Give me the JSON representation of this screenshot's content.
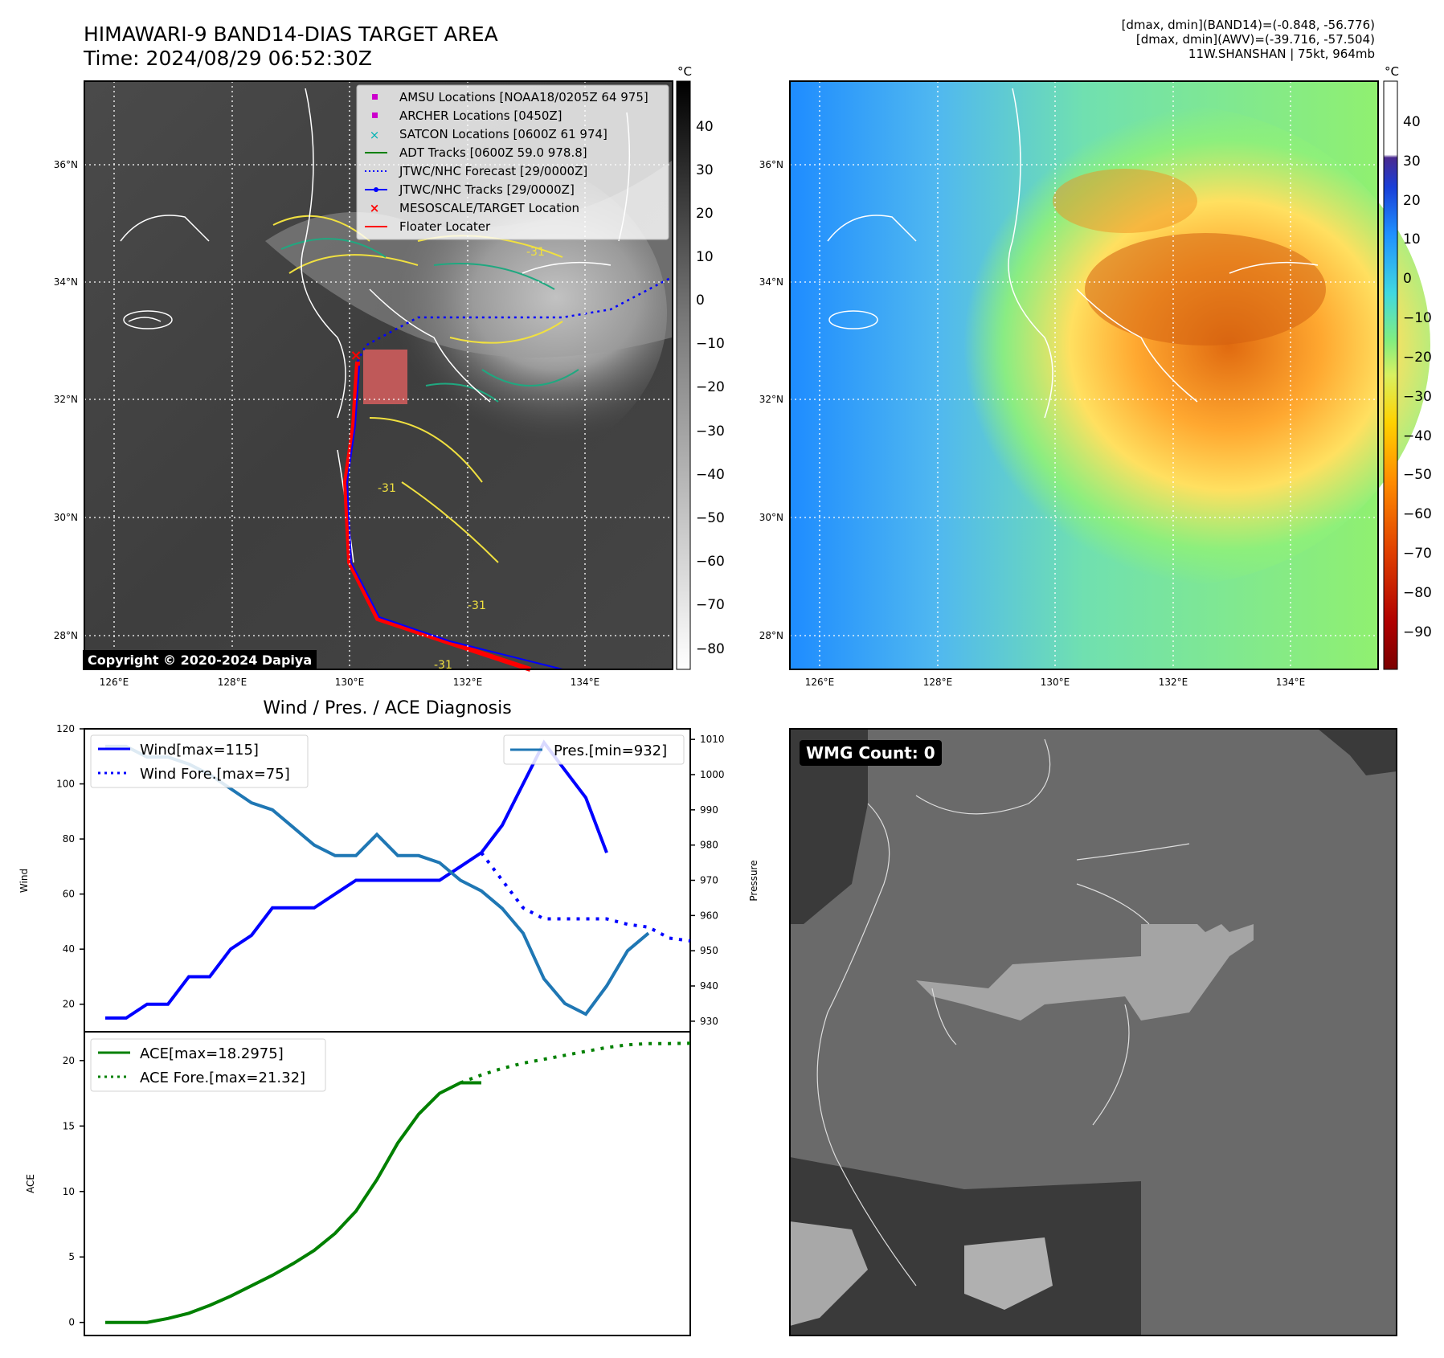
{
  "header": {
    "title_line1": "HIMAWARI-9 BAND14-DIAS TARGET AREA",
    "title_line2": "Time: 2024/08/29 06:52:30Z",
    "info_line1": "[dmax, dmin](BAND14)=(-0.848, -56.776)",
    "info_line2": "[dmax, dmin](AWV)=(-39.716, -57.504)",
    "info_line3": "11W.SHANSHAN | 75kt, 964mb"
  },
  "maps": {
    "lat_labels": [
      "36°N",
      "34°N",
      "32°N",
      "30°N",
      "28°N"
    ],
    "lon_labels": [
      "126°E",
      "128°E",
      "130°E",
      "132°E",
      "134°E"
    ],
    "copyright": "Copyright © 2020-2024 Dapiya",
    "colorbar_unit": "°C",
    "left_colorbar_ticks": [
      "40",
      "30",
      "20",
      "10",
      "0",
      "−10",
      "−20",
      "−30",
      "−40",
      "−50",
      "−60",
      "−70",
      "−80"
    ],
    "right_colorbar_ticks": [
      "40",
      "30",
      "20",
      "10",
      "0",
      "−10",
      "−20",
      "−30",
      "−40",
      "−50",
      "−60",
      "−70",
      "−80",
      "−90"
    ],
    "legend": [
      {
        "label": "AMSU Locations [NOAA18/0205Z 64 975]",
        "color": "#cc00cc",
        "marker": "square"
      },
      {
        "label": "ARCHER Locations [0450Z]",
        "color": "#cc00cc",
        "marker": "square"
      },
      {
        "label": "SATCON Locations [0600Z 61 974]",
        "color": "#00b3b3",
        "marker": "x"
      },
      {
        "label": "ADT Tracks [0600Z 59.0 978.8]",
        "color": "#008000",
        "marker": "line"
      },
      {
        "label": "JTWC/NHC Forecast [29/0000Z]",
        "color": "#0000ff",
        "marker": "dotted"
      },
      {
        "label": "JTWC/NHC Tracks [29/0000Z]",
        "color": "#0000ff",
        "marker": "line-dot"
      },
      {
        "label": "MESOSCALE/TARGET Location",
        "color": "#ff0000",
        "marker": "x"
      },
      {
        "label": "Floater Locater",
        "color": "#ff0000",
        "marker": "line"
      }
    ],
    "contour_labels": [
      "-31",
      "-31",
      "-31",
      "-31"
    ],
    "wmg_count": "WMG Count: 0"
  },
  "diagnosis_title": "Wind / Pres. / ACE Diagnosis",
  "chart_data": [
    {
      "type": "line",
      "title": "Wind / Pres. / ACE Diagnosis",
      "ylabel": "Wind",
      "y2label": "Pressure",
      "ylim": [
        10,
        120
      ],
      "y2lim": [
        927,
        1013
      ],
      "xlim": [
        0,
        29
      ],
      "yticks": [
        20,
        40,
        60,
        80,
        100,
        120
      ],
      "y2ticks": [
        930,
        940,
        950,
        960,
        970,
        980,
        990,
        1000,
        1010
      ],
      "series": [
        {
          "name": "Wind[max=115]",
          "axis": "left",
          "color": "#0000ff",
          "style": "solid",
          "x": [
            1,
            2,
            3,
            4,
            5,
            6,
            7,
            8,
            9,
            10,
            11,
            12,
            13,
            14,
            15,
            16,
            17,
            18,
            19,
            20,
            21,
            22,
            23,
            24,
            25
          ],
          "values": [
            15,
            15,
            20,
            20,
            30,
            30,
            40,
            45,
            55,
            55,
            55,
            60,
            65,
            65,
            65,
            65,
            65,
            70,
            75,
            85,
            100,
            115,
            105,
            95,
            75
          ]
        },
        {
          "name": "Wind Fore.[max=75]",
          "axis": "left",
          "color": "#0000ff",
          "style": "dotted",
          "x": [
            19,
            20,
            21,
            22,
            23,
            24,
            25,
            26,
            27,
            28,
            29
          ],
          "values": [
            75,
            65,
            55,
            51,
            51,
            51,
            51,
            49,
            48,
            44,
            43
          ]
        },
        {
          "name": "Pres.[min=932]",
          "axis": "right",
          "color": "#1f77b4",
          "style": "solid",
          "x": [
            1,
            2,
            3,
            4,
            5,
            6,
            7,
            8,
            9,
            10,
            11,
            12,
            13,
            14,
            15,
            16,
            17,
            18,
            19,
            20,
            21,
            22,
            23,
            24,
            25,
            26,
            27
          ],
          "values": [
            1008,
            1008,
            1005,
            1005,
            1003,
            1000,
            996,
            992,
            990,
            985,
            980,
            977,
            977,
            983,
            977,
            977,
            975,
            970,
            967,
            962,
            955,
            942,
            935,
            932,
            940,
            950,
            955
          ]
        }
      ]
    },
    {
      "type": "line",
      "ylabel": "ACE",
      "ylim": [
        -1,
        22.2
      ],
      "xlim": [
        0,
        29
      ],
      "yticks": [
        0,
        5,
        10,
        15,
        20
      ],
      "series": [
        {
          "name": "ACE[max=18.2975]",
          "color": "#008000",
          "style": "solid",
          "x": [
            1,
            2,
            3,
            4,
            5,
            6,
            7,
            8,
            9,
            10,
            11,
            12,
            13,
            14,
            15,
            16,
            17,
            18,
            19
          ],
          "values": [
            0,
            0,
            0,
            0.3,
            0.7,
            1.3,
            2.0,
            2.8,
            3.6,
            4.5,
            5.5,
            6.8,
            8.5,
            10.9,
            13.7,
            15.9,
            17.5,
            18.3,
            18.3
          ]
        },
        {
          "name": "ACE Fore.[max=21.32]",
          "color": "#008000",
          "style": "dotted",
          "x": [
            18,
            19,
            20,
            21,
            22,
            23,
            24,
            25,
            26,
            27,
            28,
            29
          ],
          "values": [
            18.3,
            18.9,
            19.4,
            19.8,
            20.1,
            20.4,
            20.7,
            21.0,
            21.2,
            21.3,
            21.3,
            21.32
          ]
        }
      ]
    }
  ]
}
